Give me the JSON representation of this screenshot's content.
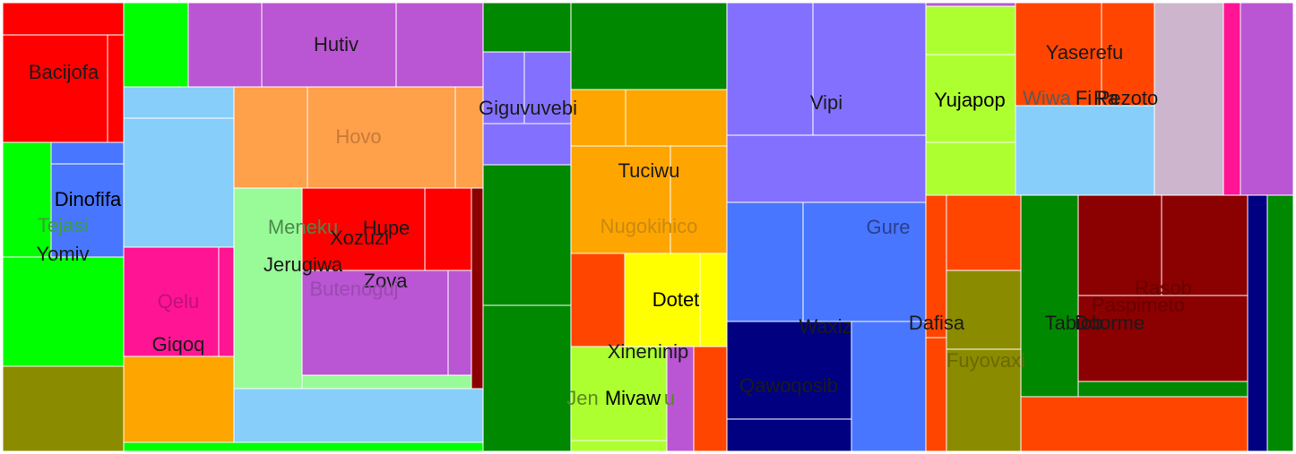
{
  "chart_data": {
    "type": "treemap",
    "title": "",
    "colors": {
      "red": "#ff0000",
      "green": "#00ff00",
      "olive": "#8b8b00",
      "orchid": "#ba55d3",
      "skyblue": "#87cefa",
      "sandybrown": "#ffa04b",
      "palegreen": "#98fb98",
      "deeppink": "#ff1493",
      "orange": "#ffa500",
      "darkred": "#8b0000",
      "darkgreen": "#008800",
      "slateblue": "#8470ff",
      "royalblue": "#4876ff",
      "navy": "#000080",
      "yellow": "#ffff00",
      "greenyellow": "#adff2f",
      "orangered": "#ff4500",
      "thistle": "#cdb5cd"
    },
    "labels": [
      {
        "text": "Bacijofa",
        "color": "#1a1a1a"
      },
      {
        "text": "Hutiv",
        "color": "#1a1a1a"
      },
      {
        "text": "Giguvuvebi",
        "color": "#1a1a1a"
      },
      {
        "text": "Vipi",
        "color": "#1a1a1a"
      },
      {
        "text": "Yujapop",
        "color": "#000000"
      },
      {
        "text": "Yaserefu",
        "color": "#1a1a1a"
      },
      {
        "text": "Wiwa",
        "color": "#5a5a5a"
      },
      {
        "text": "Fi",
        "color": "#1a1a1a"
      },
      {
        "text": "Ra",
        "color": "#1a1a1a"
      },
      {
        "text": "Pezoto",
        "color": "#1a1a1a"
      },
      {
        "text": "Hovo",
        "color": "#c87a3a"
      },
      {
        "text": "Tuciwu",
        "color": "#1a1a1a"
      },
      {
        "text": "Dinofifa",
        "color": "#000000"
      },
      {
        "text": "Tejasi",
        "color": "#3aa03a"
      },
      {
        "text": "Yomiv",
        "color": "#1a1a1a"
      },
      {
        "text": "Meneku",
        "color": "#4c8a4c"
      },
      {
        "text": "Hupe",
        "color": "#1a1a1a"
      },
      {
        "text": "Xozuzi",
        "color": "#1a1a1a"
      },
      {
        "text": "Jerugiwa",
        "color": "#1a1a1a"
      },
      {
        "text": "Zova",
        "color": "#1a1a1a"
      },
      {
        "text": "Butenoguj",
        "color": "#9a4ab0"
      },
      {
        "text": "Nugokihico",
        "color": "#c88a10"
      },
      {
        "text": "Gure",
        "color": "#2a3f8f"
      },
      {
        "text": "Qelu",
        "color": "#c0107a"
      },
      {
        "text": "Giqoq",
        "color": "#1a1a1a"
      },
      {
        "text": "Dotet",
        "color": "#000000"
      },
      {
        "text": "Xineninip",
        "color": "#1a1a1a"
      },
      {
        "text": "Jen",
        "color": "#5a8a20"
      },
      {
        "text": "u",
        "color": "#5a8a20"
      },
      {
        "text": "Mivaw",
        "color": "#000000"
      },
      {
        "text": "Qawoqosib",
        "color": "#1a1a1a"
      },
      {
        "text": "Waxiz",
        "color": "#1a1a1a"
      },
      {
        "text": "Dafisa",
        "color": "#1a1a1a"
      },
      {
        "text": "Fuyovaxi",
        "color": "#6a6a00"
      },
      {
        "text": "Tabiob",
        "color": "#1a1a1a"
      },
      {
        "text": "Doorme",
        "color": "#1a1a1a"
      },
      {
        "text": "Rasob",
        "color": "#6a0000"
      },
      {
        "text": "Paspimeto",
        "color": "#6a0000"
      }
    ]
  }
}
